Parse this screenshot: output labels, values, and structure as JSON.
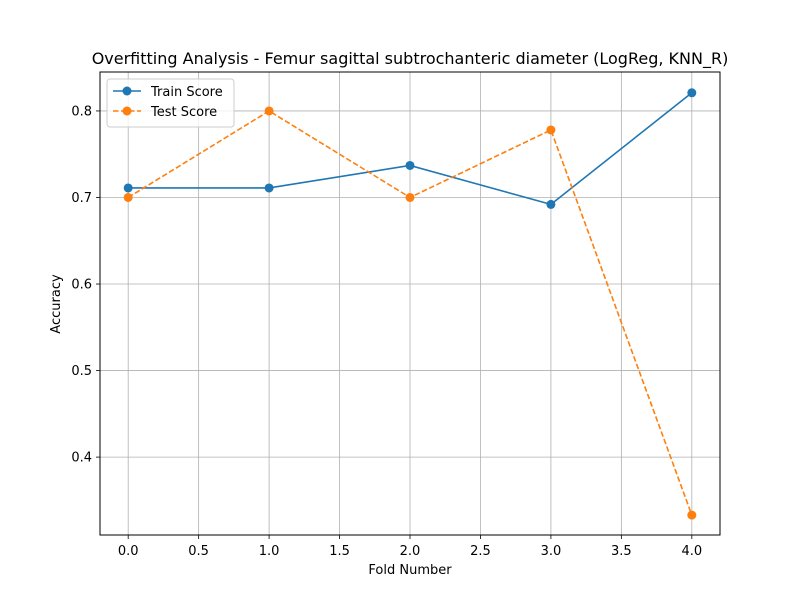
{
  "chart_data": {
    "type": "line",
    "title": "Overfitting Analysis - Femur sagittal subtrochanteric diameter (LogReg, KNN_R)",
    "xlabel": "Fold Number",
    "ylabel": "Accuracy",
    "x": [
      0,
      1,
      2,
      3,
      4
    ],
    "xlim": [
      -0.2,
      4.2
    ],
    "ylim": [
      0.31,
      0.845
    ],
    "xticks": [
      0.0,
      0.5,
      1.0,
      1.5,
      2.0,
      2.5,
      3.0,
      3.5,
      4.0
    ],
    "xtick_labels": [
      "0.0",
      "0.5",
      "1.0",
      "1.5",
      "2.0",
      "2.5",
      "3.0",
      "3.5",
      "4.0"
    ],
    "yticks": [
      0.4,
      0.5,
      0.6,
      0.7,
      0.8
    ],
    "ytick_labels": [
      "0.4",
      "0.5",
      "0.6",
      "0.7",
      "0.8"
    ],
    "grid": true,
    "legend_position": "upper-left",
    "series": [
      {
        "name": "Train Score",
        "values": [
          0.711,
          0.711,
          0.737,
          0.692,
          0.821
        ],
        "color": "#1f77b4",
        "style": "solid",
        "marker": "circle"
      },
      {
        "name": "Test Score",
        "values": [
          0.7,
          0.8,
          0.7,
          0.778,
          0.333
        ],
        "color": "#ff7f0e",
        "style": "dashed",
        "marker": "circle"
      }
    ]
  }
}
